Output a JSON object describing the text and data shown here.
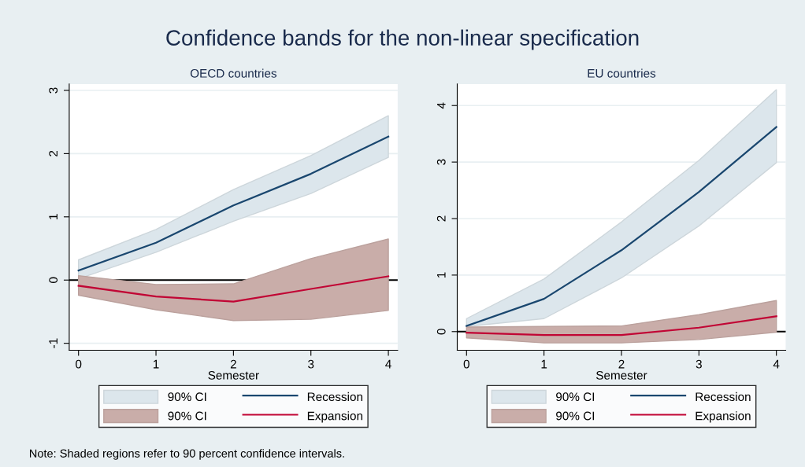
{
  "chart_data": [
    {
      "type": "other",
      "title": "Confidence bands for the non-linear specification",
      "annotations": [
        "Note: Shaded regions refer to 90 percent confidence intervals."
      ]
    },
    {
      "type": "line",
      "title": "OECD countries",
      "xlabel": "Semester",
      "x": [
        0,
        1,
        2,
        3,
        4
      ],
      "xlim": [
        -0.12,
        4.12
      ],
      "xticks": [
        0,
        1,
        2,
        3,
        4
      ],
      "ylim": [
        -1.11,
        3.1
      ],
      "yticks": [
        -1,
        0,
        1,
        2,
        3
      ],
      "grid": "y",
      "legend": "bottom",
      "annotations": [
        "90% CI",
        "90% CI"
      ],
      "ref_lines": [
        {
          "axis": "y",
          "value": 0,
          "color": "#000000"
        }
      ],
      "series": [
        {
          "name": "Recession",
          "color": "#1a476f",
          "values": [
            0.15,
            0.59,
            1.18,
            1.68,
            2.27
          ],
          "lower": [
            0.02,
            0.44,
            0.93,
            1.37,
            1.94
          ],
          "upper": [
            0.32,
            0.8,
            1.43,
            1.97,
            2.6
          ]
        },
        {
          "name": "Expansion",
          "color": "#c10534",
          "values": [
            -0.09,
            -0.26,
            -0.34,
            -0.14,
            0.06
          ],
          "lower": [
            -0.24,
            -0.47,
            -0.64,
            -0.62,
            -0.48
          ],
          "upper": [
            0.07,
            -0.07,
            -0.06,
            0.34,
            0.65
          ]
        }
      ]
    },
    {
      "type": "line",
      "title": "EU countries",
      "xlabel": "Semester",
      "x": [
        0,
        1,
        2,
        3,
        4
      ],
      "xlim": [
        -0.12,
        4.12
      ],
      "xticks": [
        0,
        1,
        2,
        3,
        4
      ],
      "ylim": [
        -0.33,
        4.38
      ],
      "yticks": [
        0,
        1,
        2,
        3,
        4
      ],
      "grid": "y",
      "legend": "bottom",
      "annotations": [
        "90% CI",
        "90% CI"
      ],
      "ref_lines": [
        {
          "axis": "y",
          "value": 0,
          "color": "#000000"
        }
      ],
      "series": [
        {
          "name": "Recession",
          "color": "#1a476f",
          "values": [
            0.1,
            0.58,
            1.44,
            2.47,
            3.62
          ],
          "lower": [
            0.09,
            0.23,
            0.95,
            1.87,
            2.99
          ],
          "upper": [
            0.23,
            0.93,
            1.94,
            3.03,
            4.28
          ]
        },
        {
          "name": "Expansion",
          "color": "#c10534",
          "values": [
            -0.02,
            -0.06,
            -0.06,
            0.07,
            0.27
          ],
          "lower": [
            -0.11,
            -0.2,
            -0.2,
            -0.14,
            -0.01
          ],
          "upper": [
            0.08,
            0.09,
            0.1,
            0.3,
            0.55
          ]
        }
      ]
    }
  ]
}
